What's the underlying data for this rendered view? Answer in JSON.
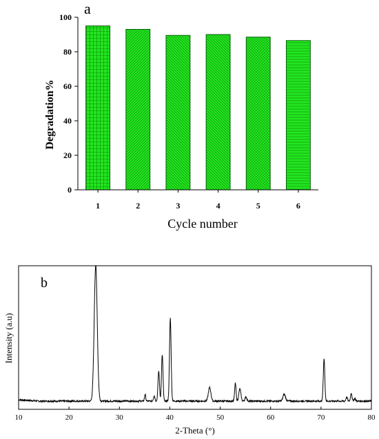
{
  "chart_data": [
    {
      "panel": "a",
      "type": "bar",
      "categories": [
        "1",
        "2",
        "3",
        "4",
        "5",
        "6"
      ],
      "values": [
        95,
        93,
        89.5,
        90,
        88.5,
        86.5
      ],
      "xlabel": "Cycle number",
      "ylabel": "Degradation%",
      "ylim": [
        0,
        100
      ],
      "yticks": [
        "0",
        "20",
        "40",
        "60",
        "80",
        "100"
      ],
      "bar_color": "#22e61f",
      "grid": false
    },
    {
      "panel": "b",
      "type": "line",
      "xlabel": "2-Theta (°)",
      "ylabel": "Intensity (a.u)",
      "xlim": [
        10,
        80
      ],
      "xticks": [
        "10",
        "20",
        "30",
        "40",
        "50",
        "60",
        "70",
        "80"
      ],
      "yticks_shown": false,
      "baseline_relative": 0.03,
      "peaks": [
        {
          "two_theta": 25.3,
          "relative_intensity": 1.0,
          "width": 0.3
        },
        {
          "two_theta": 35.1,
          "relative_intensity": 0.05,
          "width": 0.12
        },
        {
          "two_theta": 36.9,
          "relative_intensity": 0.04,
          "width": 0.15
        },
        {
          "two_theta": 37.8,
          "relative_intensity": 0.22,
          "width": 0.15
        },
        {
          "two_theta": 38.5,
          "relative_intensity": 0.34,
          "width": 0.15
        },
        {
          "two_theta": 40.1,
          "relative_intensity": 0.61,
          "width": 0.16
        },
        {
          "two_theta": 47.9,
          "relative_intensity": 0.1,
          "width": 0.25
        },
        {
          "two_theta": 53.0,
          "relative_intensity": 0.13,
          "width": 0.14
        },
        {
          "two_theta": 53.9,
          "relative_intensity": 0.09,
          "width": 0.2
        },
        {
          "two_theta": 55.1,
          "relative_intensity": 0.03,
          "width": 0.18
        },
        {
          "two_theta": 62.7,
          "relative_intensity": 0.05,
          "width": 0.25
        },
        {
          "two_theta": 70.6,
          "relative_intensity": 0.31,
          "width": 0.15
        },
        {
          "two_theta": 75.1,
          "relative_intensity": 0.03,
          "width": 0.15
        },
        {
          "two_theta": 76.0,
          "relative_intensity": 0.06,
          "width": 0.14
        },
        {
          "two_theta": 76.7,
          "relative_intensity": 0.02,
          "width": 0.15
        }
      ],
      "line_color": "#000000"
    }
  ]
}
